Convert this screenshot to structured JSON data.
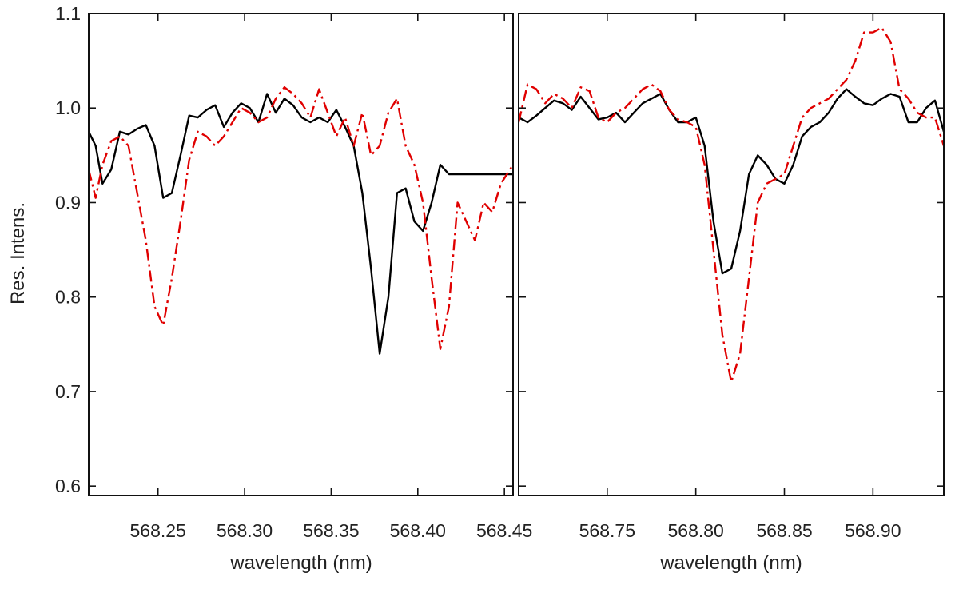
{
  "chart_data": [
    {
      "type": "line",
      "xlabel": "wavelength (nm)",
      "ylabel": "Res. Intens.",
      "xlim": [
        568.21,
        568.455
      ],
      "ylim": [
        0.59,
        1.1
      ],
      "xticks": [
        "568.25",
        "568.30",
        "568.35",
        "568.40",
        "568.45"
      ],
      "xtick_values": [
        568.25,
        568.3,
        568.35,
        568.4,
        568.45
      ],
      "yticks": [
        "0.6",
        "0.7",
        "0.8",
        "0.9",
        "1.0",
        "1.1"
      ],
      "ytick_values": [
        0.6,
        0.7,
        0.8,
        0.9,
        1.0,
        1.1
      ],
      "series": [
        {
          "style": "solid",
          "color": "#000000",
          "x": [
            568.21,
            568.214,
            568.218,
            568.223,
            568.228,
            568.233,
            568.238,
            568.243,
            568.248,
            568.253,
            568.258,
            568.263,
            568.268,
            568.273,
            568.278,
            568.283,
            568.288,
            568.293,
            568.298,
            568.303,
            568.308,
            568.313,
            568.318,
            568.323,
            568.328,
            568.333,
            568.338,
            568.343,
            568.348,
            568.353,
            568.358,
            568.363,
            568.368,
            568.373,
            568.378,
            568.383,
            568.388,
            568.393,
            568.398,
            568.403,
            568.408,
            568.413,
            568.418,
            568.423,
            568.428,
            568.433,
            568.438,
            568.443,
            568.448,
            568.455
          ],
          "y": [
            0.975,
            0.96,
            0.92,
            0.935,
            0.975,
            0.972,
            0.978,
            0.982,
            0.96,
            0.905,
            0.91,
            0.95,
            0.992,
            0.99,
            0.998,
            1.003,
            0.98,
            0.995,
            1.005,
            1.0,
            0.985,
            1.015,
            0.995,
            1.01,
            1.003,
            0.99,
            0.985,
            0.99,
            0.985,
            0.998,
            0.98,
            0.96,
            0.91,
            0.83,
            0.74,
            0.8,
            0.91,
            0.915,
            0.88,
            0.87,
            0.9,
            0.94,
            0.93,
            0.93,
            0.93,
            0.93,
            0.93,
            0.93,
            0.93,
            0.93
          ]
        },
        {
          "style": "dashdot",
          "color": "#e00000",
          "x": [
            568.21,
            568.214,
            568.218,
            568.223,
            568.228,
            568.233,
            568.238,
            568.243,
            568.248,
            568.253,
            568.258,
            568.263,
            568.268,
            568.273,
            568.278,
            568.283,
            568.288,
            568.293,
            568.298,
            568.303,
            568.308,
            568.313,
            568.318,
            568.323,
            568.328,
            568.333,
            568.338,
            568.343,
            568.348,
            568.353,
            568.358,
            568.363,
            568.368,
            568.373,
            568.378,
            568.383,
            568.388,
            568.393,
            568.398,
            568.403,
            568.408,
            568.413,
            568.418,
            568.423,
            568.428,
            568.433,
            568.438,
            568.443,
            568.448,
            568.455
          ],
          "y": [
            0.935,
            0.905,
            0.94,
            0.965,
            0.97,
            0.96,
            0.91,
            0.86,
            0.79,
            0.77,
            0.82,
            0.88,
            0.945,
            0.975,
            0.97,
            0.96,
            0.97,
            0.985,
            1.0,
            0.995,
            0.985,
            0.99,
            1.01,
            1.022,
            1.015,
            1.005,
            0.99,
            1.02,
            0.995,
            0.97,
            0.99,
            0.96,
            0.995,
            0.95,
            0.96,
            0.995,
            1.01,
            0.96,
            0.94,
            0.9,
            0.82,
            0.745,
            0.79,
            0.9,
            0.88,
            0.86,
            0.9,
            0.89,
            0.92,
            0.94
          ]
        }
      ]
    },
    {
      "type": "line",
      "xlabel": "wavelength (nm)",
      "ylabel": "",
      "xlim": [
        568.7,
        568.94
      ],
      "ylim": [
        0.59,
        1.1
      ],
      "xticks": [
        "568.75",
        "568.80",
        "568.85",
        "568.90"
      ],
      "xtick_values": [
        568.75,
        568.8,
        568.85,
        568.9
      ],
      "yticks": [],
      "ytick_values": [
        0.6,
        0.7,
        0.8,
        0.9,
        1.0,
        1.1
      ],
      "series": [
        {
          "style": "solid",
          "color": "#000000",
          "x": [
            568.7,
            568.705,
            568.71,
            568.715,
            568.72,
            568.725,
            568.73,
            568.735,
            568.74,
            568.745,
            568.75,
            568.755,
            568.76,
            568.765,
            568.77,
            568.775,
            568.78,
            568.785,
            568.79,
            568.795,
            568.8,
            568.805,
            568.81,
            568.815,
            568.82,
            568.825,
            568.83,
            568.835,
            568.84,
            568.845,
            568.85,
            568.855,
            568.86,
            568.865,
            568.87,
            568.875,
            568.88,
            568.885,
            568.89,
            568.895,
            568.9,
            568.905,
            568.91,
            568.915,
            568.92,
            568.925,
            568.93,
            568.935,
            568.94
          ],
          "y": [
            0.99,
            0.985,
            0.992,
            1.0,
            1.008,
            1.005,
            0.998,
            1.012,
            1.0,
            0.988,
            0.99,
            0.995,
            0.985,
            0.995,
            1.005,
            1.01,
            1.015,
            0.998,
            0.985,
            0.985,
            0.99,
            0.96,
            0.88,
            0.825,
            0.83,
            0.87,
            0.93,
            0.95,
            0.94,
            0.925,
            0.92,
            0.94,
            0.97,
            0.98,
            0.985,
            0.995,
            1.01,
            1.02,
            1.012,
            1.005,
            1.003,
            1.01,
            1.015,
            1.012,
            0.985,
            0.985,
            1.0,
            1.008,
            0.975
          ]
        },
        {
          "style": "dashdot",
          "color": "#e00000",
          "x": [
            568.7,
            568.705,
            568.71,
            568.715,
            568.72,
            568.725,
            568.73,
            568.735,
            568.74,
            568.745,
            568.75,
            568.755,
            568.76,
            568.765,
            568.77,
            568.775,
            568.78,
            568.785,
            568.79,
            568.795,
            568.8,
            568.805,
            568.81,
            568.815,
            568.82,
            568.825,
            568.83,
            568.835,
            568.84,
            568.845,
            568.85,
            568.855,
            568.86,
            568.865,
            568.87,
            568.875,
            568.88,
            568.885,
            568.89,
            568.895,
            568.9,
            568.905,
            568.91,
            568.915,
            568.92,
            568.925,
            568.93,
            568.935,
            568.94
          ],
          "y": [
            0.985,
            1.025,
            1.02,
            1.005,
            1.015,
            1.01,
            1.0,
            1.022,
            1.018,
            0.99,
            0.985,
            0.995,
            1.0,
            1.01,
            1.02,
            1.025,
            1.018,
            0.998,
            0.988,
            0.985,
            0.98,
            0.94,
            0.85,
            0.76,
            0.71,
            0.74,
            0.82,
            0.9,
            0.92,
            0.925,
            0.93,
            0.96,
            0.99,
            1.0,
            1.005,
            1.01,
            1.02,
            1.03,
            1.05,
            1.08,
            1.08,
            1.085,
            1.07,
            1.02,
            1.01,
            0.995,
            0.99,
            0.99,
            0.96
          ]
        }
      ]
    }
  ]
}
